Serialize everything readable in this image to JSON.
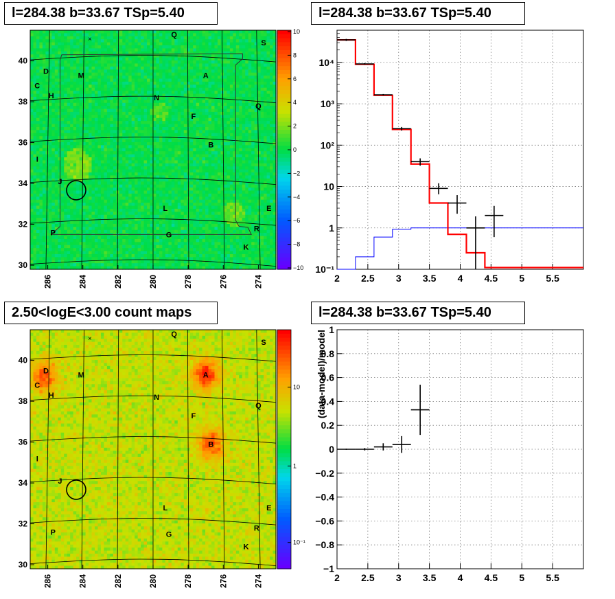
{
  "panels": {
    "tl_title": "l=284.38 b=33.67 TSp=5.40",
    "tr_title": "l=284.38 b=33.67 TSp=5.40",
    "bl_title": "2.50<logE<3.00 count maps",
    "br_title": "l=284.38 b=33.67 TSp=5.40"
  },
  "chart_data": [
    {
      "type": "heatmap",
      "name": "residual-significance-map",
      "xticks": [
        "286",
        "284",
        "282",
        "280",
        "278",
        "276",
        "274"
      ],
      "yticks": [
        "30",
        "32",
        "34",
        "36",
        "38",
        "40"
      ],
      "zticks": [
        "10",
        "8",
        "6",
        "4",
        "2",
        "0",
        "−2",
        "−4",
        "−6",
        "−8",
        "−10"
      ],
      "zlim": [
        -10,
        10
      ],
      "colors": {
        "scale_top": "#ff0000",
        "scale_mid": "#00dd44",
        "scale_bottom": "#6600ff"
      },
      "sources": [
        {
          "label": "Q",
          "l": 278.8,
          "b": 41.3
        },
        {
          "label": "S",
          "l": 273.7,
          "b": 40.9
        },
        {
          "label": "D",
          "l": 286.1,
          "b": 39.5
        },
        {
          "label": "M",
          "l": 284.1,
          "b": 39.3
        },
        {
          "label": "A",
          "l": 277.0,
          "b": 39.3
        },
        {
          "label": "C",
          "l": 286.6,
          "b": 38.8
        },
        {
          "label": "H",
          "l": 285.8,
          "b": 38.3
        },
        {
          "label": "N",
          "l": 279.8,
          "b": 38.2
        },
        {
          "label": "Q",
          "l": 274.0,
          "b": 37.8
        },
        {
          "label": "F",
          "l": 277.7,
          "b": 37.3
        },
        {
          "label": "B",
          "l": 276.7,
          "b": 35.9
        },
        {
          "label": "I",
          "l": 286.6,
          "b": 35.2
        },
        {
          "label": "J",
          "l": 285.3,
          "b": 34.1
        },
        {
          "label": "L",
          "l": 279.3,
          "b": 32.8
        },
        {
          "label": "E",
          "l": 273.4,
          "b": 32.8
        },
        {
          "label": "R",
          "l": 274.1,
          "b": 31.8
        },
        {
          "label": "P",
          "l": 285.7,
          "b": 31.6
        },
        {
          "label": "G",
          "l": 279.1,
          "b": 31.5
        },
        {
          "label": "K",
          "l": 274.7,
          "b": 30.9
        }
      ],
      "target": {
        "l": 284.38,
        "b": 33.67
      }
    },
    {
      "type": "line",
      "name": "count-spectrum",
      "xlim": [
        2,
        6
      ],
      "ylim": [
        0.1,
        60000
      ],
      "yscale": "log",
      "xticks": [
        "2",
        "2.5",
        "3",
        "3.5",
        "4",
        "4.5",
        "5",
        "5.5"
      ],
      "yticks": [
        "10⁻¹",
        "1",
        "10",
        "10²",
        "10³",
        "10⁴"
      ],
      "colors": {
        "total_model": "#ff0000",
        "source_model": "#0000ff",
        "data": "#000000"
      },
      "series": [
        {
          "edges": [
            2.0,
            2.3,
            2.6,
            2.9,
            3.2,
            3.5,
            3.8,
            4.1,
            4.4,
            6.0
          ],
          "values": [
            35000,
            9000,
            1600,
            240,
            35,
            4,
            0.7,
            0.25,
            0.11
          ]
        },
        {
          "edges": [
            2.0,
            2.3,
            2.6,
            2.9,
            3.2,
            3.5,
            6.0
          ],
          "values": [
            0.05,
            0.2,
            0.6,
            0.93,
            1.0,
            1.0
          ]
        },
        {
          "x": [
            2.15,
            2.45,
            2.75,
            3.05,
            3.35,
            3.65,
            3.95,
            4.25,
            4.55
          ],
          "y": [
            35000,
            9200,
            1650,
            250,
            40,
            9,
            4,
            1,
            2
          ],
          "ylo": [
            33000,
            8800,
            1580,
            225,
            32,
            6.5,
            2.2,
            0.1,
            0.6
          ],
          "yhi": [
            37000,
            9600,
            1720,
            275,
            48,
            12,
            6.2,
            1.9,
            3.4
          ]
        }
      ]
    },
    {
      "type": "heatmap",
      "name": "count-map",
      "xticks": [
        "286",
        "284",
        "282",
        "280",
        "278",
        "276",
        "274"
      ],
      "yticks": [
        "30",
        "32",
        "34",
        "36",
        "38",
        "40"
      ],
      "zticks": [
        "10",
        "1",
        "10⁻¹"
      ],
      "zscale": "log",
      "colors": {
        "scale_top": "#ff0000",
        "scale_mid": "#00dd44",
        "scale_bottom": "#6600ff"
      },
      "hotspots": [
        {
          "label": "A",
          "l": 277.0,
          "b": 39.3,
          "strength": 1.0
        },
        {
          "label": "B",
          "l": 276.7,
          "b": 35.9,
          "strength": 0.85
        },
        {
          "label": "D",
          "l": 286.2,
          "b": 39.2,
          "strength": 0.8
        }
      ],
      "target": {
        "l": 284.38,
        "b": 33.67
      }
    },
    {
      "type": "scatter",
      "name": "residual-fraction",
      "xlim": [
        2,
        6
      ],
      "ylim": [
        -1,
        1
      ],
      "xticks": [
        "2",
        "2.5",
        "3",
        "3.5",
        "4",
        "4.5",
        "5",
        "5.5"
      ],
      "yticks": [
        "−1",
        "−0.8",
        "−0.6",
        "−0.4",
        "−0.2",
        "0",
        "0.2",
        "0.4",
        "0.6",
        "0.8",
        "1"
      ],
      "ylabel": "(data-model)/model",
      "series": [
        {
          "x": [
            2.15,
            2.45,
            2.75,
            3.05,
            3.35
          ],
          "xerr": [
            0.15,
            0.15,
            0.15,
            0.15,
            0.15
          ],
          "y": [
            0.0,
            0.0,
            0.02,
            0.04,
            0.33
          ],
          "yerr": [
            0.005,
            0.01,
            0.03,
            0.07,
            0.21
          ]
        }
      ]
    }
  ]
}
